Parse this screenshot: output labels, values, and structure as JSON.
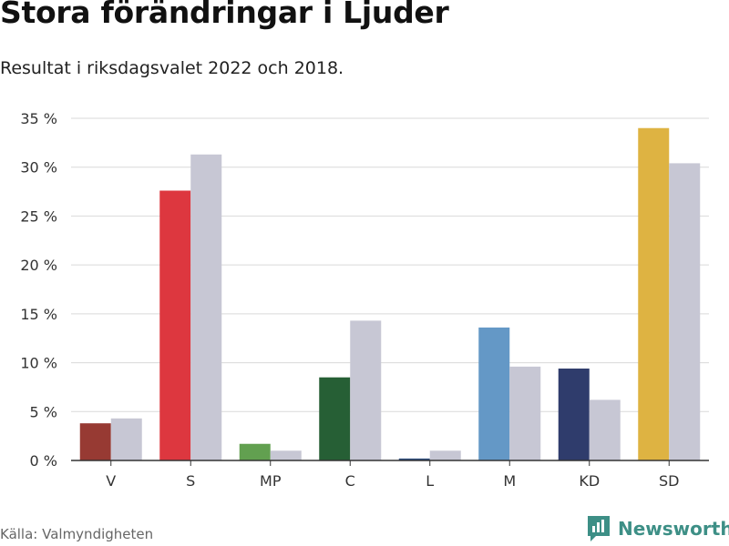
{
  "header": {
    "title": "Stora förändringar i Ljuder",
    "subtitle": "Resultat i riksdagsvalet 2022 och 2018."
  },
  "footer": {
    "source": "Källa: Valmyndigheten",
    "brand": "Newsworthy",
    "brand_icon": "bar-chart-logo-icon",
    "brand_color": "#3d8f86"
  },
  "chart_data": {
    "type": "bar",
    "title": "Stora förändringar i Ljuder",
    "subtitle": "Resultat i riksdagsvalet 2022 och 2018.",
    "xlabel": "",
    "ylabel": "",
    "categories": [
      "V",
      "S",
      "MP",
      "C",
      "L",
      "M",
      "KD",
      "SD"
    ],
    "series": [
      {
        "name": "2022",
        "values": [
          3.8,
          27.6,
          1.7,
          8.5,
          0.2,
          13.6,
          9.4,
          34.0
        ],
        "colors": [
          "#973a33",
          "#dd373f",
          "#62a050",
          "#265f35",
          "#2f4f7f",
          "#6498c6",
          "#2f3c6c",
          "#deb342"
        ]
      },
      {
        "name": "2018",
        "values": [
          4.3,
          31.3,
          1.0,
          14.3,
          1.0,
          9.6,
          6.2,
          30.4
        ],
        "color": "#c7c7d4"
      }
    ],
    "ylim": [
      0,
      35
    ],
    "yticks": [
      0,
      5,
      10,
      15,
      20,
      25,
      30,
      35
    ],
    "ytick_labels": [
      "0 %",
      "5 %",
      "10 %",
      "15 %",
      "20 %",
      "25 %",
      "30 %",
      "35 %"
    ],
    "grid": true,
    "legend": "none"
  }
}
